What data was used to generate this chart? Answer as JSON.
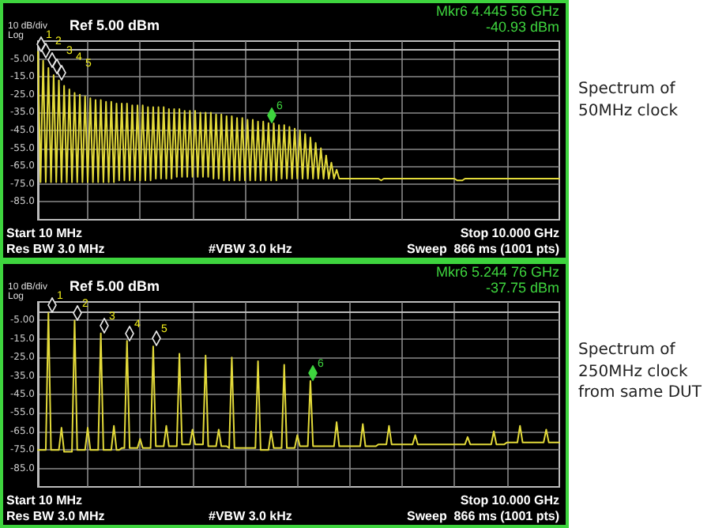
{
  "chart_data": [
    {
      "type": "line",
      "color": "#e3da3a",
      "marker": "none",
      "line_style": "solid",
      "grid": true,
      "tick_labels": "y",
      "categories": [
        null,
        null,
        null,
        null,
        null,
        null,
        null,
        null,
        null,
        null,
        null,
        null,
        null,
        null,
        null,
        null,
        null,
        null,
        null,
        null,
        null,
        null,
        null,
        null,
        null,
        null,
        null,
        null,
        null,
        null,
        null,
        null,
        null,
        null,
        null,
        null,
        null,
        null,
        null,
        null,
        null,
        null,
        null,
        null,
        null,
        null,
        null,
        null,
        null,
        null,
        null,
        null,
        null,
        null,
        null,
        null,
        null,
        null,
        null,
        null,
        null,
        null,
        null,
        null,
        null,
        null,
        null,
        null,
        null,
        null,
        null,
        null,
        null,
        null,
        null,
        null,
        null,
        null,
        null,
        null,
        null,
        null,
        null,
        null,
        null,
        null,
        null,
        null,
        null,
        null,
        null,
        null,
        null,
        null,
        null,
        null,
        null,
        null,
        null,
        null,
        null,
        null,
        null,
        null,
        null,
        null,
        null,
        null,
        null,
        null,
        null,
        null,
        null,
        null,
        null,
        null,
        null,
        null,
        null,
        null,
        null,
        null,
        null,
        null,
        null,
        null,
        null,
        null,
        null,
        null,
        null,
        null,
        null,
        null,
        null,
        null,
        null,
        null,
        null,
        null,
        null,
        null,
        null,
        null,
        null,
        null,
        null,
        null,
        null,
        null,
        null,
        null,
        null,
        null,
        null,
        null,
        null,
        null,
        null,
        null,
        null,
        null,
        null,
        null,
        null,
        null,
        null,
        null,
        null,
        null,
        null,
        null,
        null,
        null,
        null,
        null,
        null,
        null,
        null,
        null,
        null,
        null,
        null,
        null,
        null,
        null,
        null,
        null,
        null,
        null,
        null,
        null,
        null,
        null,
        null,
        null,
        null,
        null,
        null,
        null
      ],
      "values": [
        -1,
        -74,
        -6,
        -74,
        -10,
        -74,
        -14,
        -74,
        -17,
        -74,
        -20,
        -74,
        -22,
        -74,
        -24,
        -74,
        -25,
        -74,
        -26,
        -74,
        -27,
        -74,
        -28,
        -74,
        -28,
        -74,
        -29,
        -74,
        -29,
        -74,
        -30,
        -73,
        -30,
        -73,
        -30,
        -73,
        -31,
        -73,
        -31,
        -73,
        -31,
        -73,
        -32,
        -73,
        -32,
        -72,
        -32,
        -72,
        -32,
        -72,
        -33,
        -72,
        -33,
        -71,
        -33,
        -71,
        -34,
        -71,
        -34,
        -71,
        -34,
        -71,
        -35,
        -71,
        -35,
        -71,
        -35,
        -72,
        -36,
        -72,
        -36,
        -73,
        -37,
        -73,
        -37,
        -73,
        -38,
        -73,
        -38,
        -73,
        -39,
        -73,
        -39,
        -73,
        -40,
        -73,
        -40,
        -73,
        -40.93,
        -73,
        -41,
        -73,
        -42,
        -72,
        -42,
        -72,
        -43,
        -72,
        -44,
        -72,
        -45,
        -72,
        -47,
        -72,
        -49,
        -72,
        -52,
        -72,
        -55,
        -72,
        -59,
        -72,
        -63,
        -72,
        -67,
        -72,
        -72,
        -72,
        -72,
        -72,
        -72,
        -72,
        -72,
        -72,
        -72,
        -72,
        -72,
        -72,
        -72,
        -72,
        -72,
        -73,
        -72,
        -72,
        -72,
        -72,
        -72,
        -72,
        -72,
        -72,
        -72,
        -72,
        -72,
        -72,
        -72,
        -72,
        -72,
        -72,
        -72,
        -72,
        -72,
        -72,
        -72,
        -72,
        -72,
        -72,
        -72,
        -72,
        -72,
        -72,
        -73,
        -73,
        -73,
        -72,
        -72,
        -72,
        -72,
        -72,
        -72,
        -72,
        -72,
        -72,
        -72,
        -72,
        -72,
        -72,
        -72,
        -72,
        -72,
        -72,
        -72,
        -72,
        -72,
        -72,
        -72,
        -72,
        -72,
        -72,
        -72,
        -72,
        -72,
        -72,
        -72,
        -72,
        -72,
        -72,
        -72,
        -72,
        -72,
        -72
      ],
      "ylim": [
        -95,
        5
      ],
      "yticks": [
        {
          "value": -5,
          "label": "-5.00"
        },
        {
          "value": -15,
          "label": "-15.0"
        },
        {
          "value": -25,
          "label": "-25.0"
        },
        {
          "value": -35,
          "label": "-35.0"
        },
        {
          "value": -45,
          "label": "-45.0"
        },
        {
          "value": -55,
          "label": "-55.0"
        },
        {
          "value": -65,
          "label": "-65.0"
        },
        {
          "value": -75,
          "label": "-75.0"
        },
        {
          "value": -85,
          "label": "-85.0"
        }
      ],
      "annotations": [
        "10 dB/div",
        "Log",
        "Ref 5.00 dBm",
        "Mkr6 4.445 56 GHz",
        "-40.93 dBm",
        "Start 10 MHz",
        "Res BW 3.0 MHz",
        "#VBW 3.0 kHz",
        "Stop 10.000 GHz",
        "Sweep  866 ms (1001 pts)",
        "Spectrum of\n50MHz clock",
        "1",
        "2",
        "3",
        "4",
        "5",
        "6"
      ]
    },
    {
      "type": "line",
      "color": "#e3da3a",
      "marker": "none",
      "line_style": "solid",
      "grid": true,
      "tick_labels": "y",
      "categories": [
        null,
        null,
        null,
        null,
        null,
        null,
        null,
        null,
        null,
        null,
        null,
        null,
        null,
        null,
        null,
        null,
        null,
        null,
        null,
        null,
        null,
        null,
        null,
        null,
        null,
        null,
        null,
        null,
        null,
        null,
        null,
        null,
        null,
        null,
        null,
        null,
        null,
        null,
        null,
        null,
        null,
        null,
        null,
        null,
        null,
        null,
        null,
        null,
        null,
        null,
        null,
        null,
        null,
        null,
        null,
        null,
        null,
        null,
        null,
        null,
        null,
        null,
        null,
        null,
        null,
        null,
        null,
        null,
        null,
        null,
        null,
        null,
        null,
        null,
        null,
        null,
        null,
        null,
        null,
        null,
        null,
        null,
        null,
        null,
        null,
        null,
        null,
        null,
        null,
        null,
        null,
        null,
        null,
        null,
        null,
        null,
        null,
        null,
        null,
        null,
        null,
        null,
        null,
        null,
        null,
        null,
        null,
        null,
        null,
        null,
        null,
        null,
        null,
        null,
        null,
        null,
        null,
        null,
        null,
        null,
        null,
        null,
        null,
        null,
        null,
        null,
        null,
        null,
        null,
        null,
        null,
        null,
        null,
        null,
        null,
        null,
        null,
        null,
        null,
        null,
        null,
        null,
        null,
        null,
        null,
        null,
        null,
        null,
        null,
        null,
        null,
        null,
        null,
        null,
        null,
        null,
        null,
        null,
        null,
        null,
        null,
        null,
        null,
        null,
        null,
        null,
        null,
        null,
        null,
        null,
        null,
        null,
        null,
        null,
        null,
        null,
        null,
        null,
        null,
        null,
        null,
        null,
        null,
        null,
        null,
        null,
        null,
        null,
        null,
        null,
        null,
        null,
        null,
        null,
        null,
        null,
        null,
        null,
        null,
        null
      ],
      "values": [
        -75,
        -75,
        -75,
        -75,
        -1,
        -75,
        -75,
        -75,
        -75,
        -63,
        -76,
        -76,
        -76,
        -76,
        -5,
        -75,
        -75,
        -75,
        -75,
        -63,
        -75,
        -75,
        -75,
        -75,
        -12,
        -75,
        -75,
        -75,
        -75,
        -62,
        -75,
        -75,
        -74,
        -74,
        -16,
        -74,
        -74,
        -74,
        -74,
        -69,
        -74,
        -74,
        -74,
        -74,
        -19,
        -73,
        -73,
        -73,
        -73,
        -62,
        -73,
        -73,
        -73,
        -73,
        -23,
        -72,
        -72,
        -72,
        -72,
        -64,
        -72,
        -72,
        -72,
        -72,
        -24,
        -73,
        -73,
        -73,
        -73,
        -64,
        -73,
        -73,
        -73,
        -74,
        -25,
        -74,
        -74,
        -74,
        -74,
        -74,
        -74,
        -74,
        -74,
        -74,
        -27,
        -75,
        -75,
        -75,
        -75,
        -65,
        -74,
        -74,
        -74,
        -74,
        -29,
        -74,
        -74,
        -74,
        -74,
        -67,
        -73,
        -73,
        -73,
        -73,
        -37.75,
        -73,
        -73,
        -73,
        -73,
        -73,
        -73,
        -73,
        -73,
        -73,
        -60,
        -73,
        -73,
        -73,
        -73,
        -73,
        -73,
        -73,
        -73,
        -73,
        -61,
        -73,
        -73,
        -73,
        -73,
        -73,
        -72,
        -72,
        -72,
        -72,
        -62,
        -72,
        -72,
        -72,
        -72,
        -72,
        -72,
        -72,
        -72,
        -72,
        -67,
        -72,
        -72,
        -72,
        -72,
        -72,
        -72,
        -72,
        -72,
        -72,
        -72,
        -72,
        -72,
        -72,
        -72,
        -72,
        -72,
        -72,
        -72,
        -72,
        -68,
        -72,
        -72,
        -72,
        -72,
        -72,
        -72,
        -72,
        -72,
        -72,
        -65,
        -72,
        -72,
        -72,
        -72,
        -71,
        -71,
        -71,
        -71,
        -71,
        -62,
        -71,
        -71,
        -71,
        -71,
        -71,
        -71,
        -71,
        -71,
        -71,
        -64,
        -71,
        -71,
        -71,
        -71,
        -71
      ],
      "ylim": [
        -95,
        5
      ],
      "yticks": [
        {
          "value": -5,
          "label": "-5.00"
        },
        {
          "value": -15,
          "label": "-15.0"
        },
        {
          "value": -25,
          "label": "-25.0"
        },
        {
          "value": -35,
          "label": "-35.0"
        },
        {
          "value": -45,
          "label": "-45.0"
        },
        {
          "value": -55,
          "label": "-55.0"
        },
        {
          "value": -65,
          "label": "-65.0"
        },
        {
          "value": -75,
          "label": "-75.0"
        },
        {
          "value": -85,
          "label": "-85.0"
        }
      ],
      "annotations": [
        "10 dB/div",
        "Log",
        "Ref 5.00 dBm",
        "Mkr6 5.244 76 GHz",
        "-37.75 dBm",
        "Start 10 MHz",
        "Res BW 3.0 MHz",
        "#VBW 3.0 kHz",
        "Stop 10.000 GHz",
        "Sweep  866 ms (1001 pts)",
        "Spectrum of\n250MHz clock\nfrom same DUT",
        "1",
        "2",
        "3",
        "4",
        "5",
        "6"
      ]
    }
  ]
}
